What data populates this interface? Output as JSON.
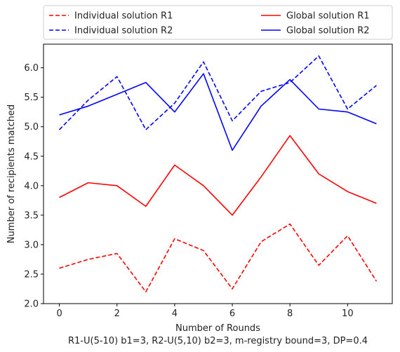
{
  "chart_data": {
    "type": "line",
    "title": "",
    "xlabel": "Number of Rounds",
    "caption": "R1-U(5-10) b1=3, R2-U(5,10) b2=3, m-registry bound=3, DP=0.4",
    "ylabel": "Number of recipients matched",
    "xlim": [
      -0.55,
      11.55
    ],
    "ylim": [
      2.0,
      6.4
    ],
    "xticks": [
      0,
      2,
      4,
      6,
      8,
      10
    ],
    "yticks": [
      2.0,
      2.5,
      3.0,
      3.5,
      4.0,
      4.5,
      5.0,
      5.5,
      6.0
    ],
    "ytick_labels": [
      "2.0",
      "2.5",
      "3.0",
      "3.5",
      "4.0",
      "4.5",
      "5.0",
      "5.5",
      "6.0"
    ],
    "grid": false,
    "legend_position": "top (above plot, two columns)",
    "x": [
      0,
      1,
      2,
      3,
      4,
      5,
      6,
      7,
      8,
      9,
      10,
      11
    ],
    "series": [
      {
        "name": "Individual solution R1",
        "color": "#ff0000",
        "style": "dashed",
        "values": [
          2.6,
          2.75,
          2.85,
          2.2,
          3.1,
          2.9,
          2.25,
          3.05,
          3.35,
          2.65,
          3.15,
          2.38
        ]
      },
      {
        "name": "Individual solution R2",
        "color": "#0000ff",
        "style": "dashed",
        "values": [
          4.95,
          5.45,
          5.85,
          4.95,
          5.4,
          6.1,
          5.1,
          5.6,
          5.75,
          6.2,
          5.3,
          5.7
        ]
      },
      {
        "name": "Global solution R1",
        "color": "#ff0000",
        "style": "solid",
        "values": [
          3.8,
          4.05,
          4.0,
          3.65,
          4.35,
          4.0,
          3.5,
          4.15,
          4.85,
          4.2,
          3.9,
          3.7
        ]
      },
      {
        "name": "Global solution R2",
        "color": "#0000ff",
        "style": "solid",
        "values": [
          5.2,
          5.35,
          5.55,
          5.75,
          5.25,
          5.9,
          4.6,
          5.35,
          5.8,
          5.3,
          5.25,
          5.05
        ]
      }
    ]
  }
}
